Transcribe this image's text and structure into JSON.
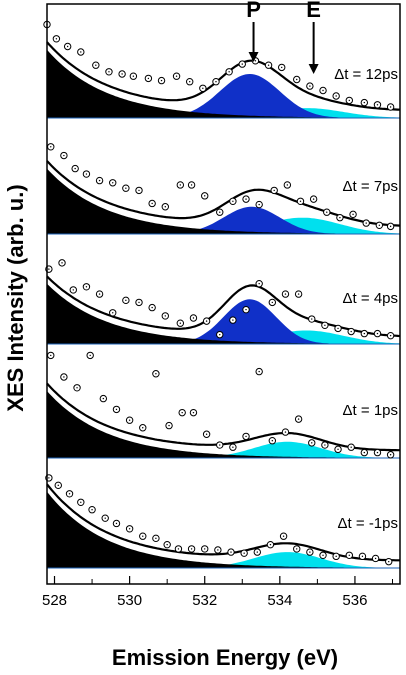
{
  "chart_data": {
    "type": "scatter",
    "xlabel": "Emission Energy (eV)",
    "ylabel": "XES Intensity (arb. u.)",
    "xlim": [
      527.8,
      537.2
    ],
    "x_ticks": [
      "528",
      "530",
      "532",
      "534",
      "536"
    ],
    "annotations": [
      {
        "label": "P",
        "x": 533.3
      },
      {
        "label": "E",
        "x": 534.9
      }
    ],
    "colors": {
      "black_component": "#000000",
      "P_component": "#1030c8",
      "E_component": "#00e0ee",
      "fit_curve": "#000000",
      "data_marker": "#000000"
    },
    "panels": [
      {
        "label": "Δt = 12ps",
        "ylim": [
          0,
          1
        ],
        "fit_params": {
          "black": [
            0.62,
            1.6
          ],
          "P": [
            0.4,
            533.2,
            0.8
          ],
          "E": [
            0.09,
            534.7,
            1.0
          ]
        },
        "points": [
          [
            527.8,
            0.85
          ],
          [
            528.05,
            0.72
          ],
          [
            528.35,
            0.65
          ],
          [
            528.7,
            0.6
          ],
          [
            529.1,
            0.48
          ],
          [
            529.45,
            0.42
          ],
          [
            529.8,
            0.4
          ],
          [
            530.1,
            0.38
          ],
          [
            530.5,
            0.36
          ],
          [
            530.85,
            0.34
          ],
          [
            531.25,
            0.38
          ],
          [
            531.6,
            0.33
          ],
          [
            531.95,
            0.27
          ],
          [
            532.3,
            0.33
          ],
          [
            532.65,
            0.42
          ],
          [
            533.0,
            0.49
          ],
          [
            533.35,
            0.52
          ],
          [
            533.7,
            0.48
          ],
          [
            534.05,
            0.46
          ],
          [
            534.45,
            0.35
          ],
          [
            534.8,
            0.29
          ],
          [
            535.15,
            0.25
          ],
          [
            535.5,
            0.2
          ],
          [
            535.85,
            0.16
          ],
          [
            536.25,
            0.14
          ],
          [
            536.6,
            0.12
          ],
          [
            536.95,
            0.1
          ]
        ]
      },
      {
        "label": "Δt = 7ps",
        "ylim": [
          0,
          1
        ],
        "fit_params": {
          "black": [
            0.6,
            1.6
          ],
          "P": [
            0.25,
            533.25,
            0.75
          ],
          "E": [
            0.15,
            534.6,
            1.0
          ]
        },
        "points": [
          [
            527.9,
            0.8
          ],
          [
            528.25,
            0.72
          ],
          [
            528.55,
            0.6
          ],
          [
            528.85,
            0.55
          ],
          [
            529.2,
            0.49
          ],
          [
            529.55,
            0.47
          ],
          [
            529.9,
            0.42
          ],
          [
            530.25,
            0.4
          ],
          [
            530.6,
            0.28
          ],
          [
            530.95,
            0.25
          ],
          [
            531.35,
            0.45
          ],
          [
            531.65,
            0.45
          ],
          [
            532.0,
            0.35
          ],
          [
            532.4,
            0.2
          ],
          [
            532.75,
            0.3
          ],
          [
            533.1,
            0.32
          ],
          [
            533.45,
            0.27
          ],
          [
            533.85,
            0.4
          ],
          [
            534.2,
            0.45
          ],
          [
            534.55,
            0.3
          ],
          [
            534.9,
            0.32
          ],
          [
            535.25,
            0.2
          ],
          [
            535.6,
            0.15
          ],
          [
            535.95,
            0.18
          ],
          [
            536.3,
            0.1
          ],
          [
            536.65,
            0.08
          ],
          [
            536.95,
            0.07
          ]
        ]
      },
      {
        "label": "Δt = 4ps",
        "ylim": [
          0,
          1
        ],
        "fit_params": {
          "black": [
            0.58,
            1.6
          ],
          "P": [
            0.43,
            533.2,
            0.7
          ],
          "E": [
            0.13,
            534.7,
            1.0
          ]
        },
        "points": [
          [
            527.85,
            0.72
          ],
          [
            528.2,
            0.78
          ],
          [
            528.5,
            0.52
          ],
          [
            528.85,
            0.55
          ],
          [
            529.2,
            0.48
          ],
          [
            529.55,
            0.3
          ],
          [
            529.9,
            0.42
          ],
          [
            530.25,
            0.4
          ],
          [
            530.6,
            0.35
          ],
          [
            530.95,
            0.27
          ],
          [
            531.35,
            0.2
          ],
          [
            531.7,
            0.25
          ],
          [
            532.05,
            0.22
          ],
          [
            532.4,
            0.09
          ],
          [
            532.75,
            0.23
          ],
          [
            533.1,
            0.33
          ],
          [
            533.45,
            0.58
          ],
          [
            533.8,
            0.4
          ],
          [
            534.15,
            0.48
          ],
          [
            534.5,
            0.48
          ],
          [
            534.85,
            0.24
          ],
          [
            535.2,
            0.18
          ],
          [
            535.55,
            0.15
          ],
          [
            535.9,
            0.12
          ],
          [
            536.25,
            0.1
          ],
          [
            536.6,
            0.1
          ],
          [
            536.95,
            0.08
          ]
        ]
      },
      {
        "label": "Δt = 1ps",
        "ylim": [
          0,
          1
        ],
        "fit_params": {
          "black": [
            0.62,
            1.6
          ],
          "P": [
            0.0,
            533.2,
            0.7
          ],
          "E": [
            0.15,
            534.2,
            0.9
          ]
        },
        "points": [
          [
            527.9,
            0.95
          ],
          [
            528.25,
            0.75
          ],
          [
            528.6,
            0.65
          ],
          [
            528.95,
            0.95
          ],
          [
            529.3,
            0.55
          ],
          [
            529.65,
            0.45
          ],
          [
            530.0,
            0.35
          ],
          [
            530.35,
            0.28
          ],
          [
            530.7,
            0.78
          ],
          [
            531.05,
            0.3
          ],
          [
            531.4,
            0.42
          ],
          [
            531.7,
            0.42
          ],
          [
            532.05,
            0.22
          ],
          [
            532.4,
            0.12
          ],
          [
            532.75,
            0.1
          ],
          [
            533.1,
            0.2
          ],
          [
            533.45,
            0.8
          ],
          [
            533.8,
            0.16
          ],
          [
            534.15,
            0.24
          ],
          [
            534.5,
            0.36
          ],
          [
            534.85,
            0.14
          ],
          [
            535.2,
            0.12
          ],
          [
            535.55,
            0.08
          ],
          [
            535.9,
            0.1
          ],
          [
            536.25,
            0.05
          ],
          [
            536.6,
            0.05
          ],
          [
            536.95,
            0.03
          ]
        ]
      },
      {
        "label": "Δt = -1ps",
        "ylim": [
          0,
          1
        ],
        "fit_params": {
          "black": [
            0.72,
            1.6
          ],
          "P": [
            0.0,
            533.2,
            0.7
          ],
          "E": [
            0.15,
            534.2,
            0.9
          ]
        },
        "points": [
          [
            527.85,
            0.85
          ],
          [
            528.1,
            0.78
          ],
          [
            528.4,
            0.7
          ],
          [
            528.7,
            0.62
          ],
          [
            529.0,
            0.55
          ],
          [
            529.35,
            0.47
          ],
          [
            529.65,
            0.42
          ],
          [
            530.0,
            0.37
          ],
          [
            530.35,
            0.3
          ],
          [
            530.7,
            0.28
          ],
          [
            531.0,
            0.22
          ],
          [
            531.3,
            0.18
          ],
          [
            531.65,
            0.18
          ],
          [
            532.0,
            0.18
          ],
          [
            532.35,
            0.17
          ],
          [
            532.7,
            0.15
          ],
          [
            533.05,
            0.14
          ],
          [
            533.4,
            0.15
          ],
          [
            533.75,
            0.22
          ],
          [
            534.1,
            0.3
          ],
          [
            534.45,
            0.18
          ],
          [
            534.8,
            0.15
          ],
          [
            535.15,
            0.12
          ],
          [
            535.5,
            0.11
          ],
          [
            535.85,
            0.12
          ],
          [
            536.2,
            0.11
          ],
          [
            536.55,
            0.09
          ],
          [
            536.9,
            0.06
          ]
        ]
      }
    ]
  }
}
